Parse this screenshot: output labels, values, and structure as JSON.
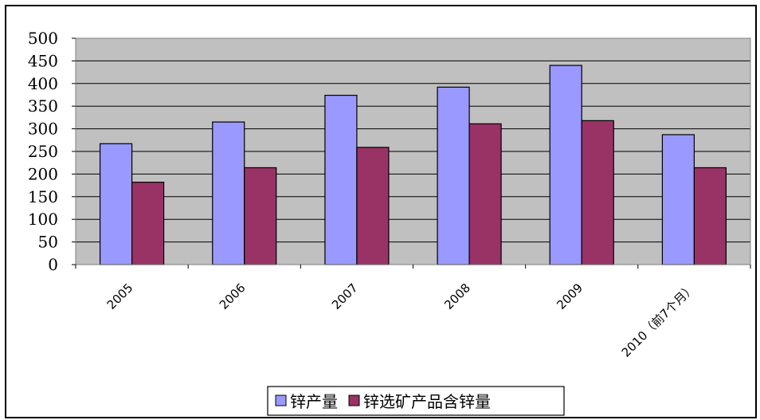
{
  "chart_data": {
    "type": "bar",
    "categories": [
      "2005",
      "2006",
      "2007",
      "2008",
      "2009",
      "2010（前7个月）"
    ],
    "series": [
      {
        "name": "锌产量",
        "values": [
          267,
          315,
          374,
          392,
          440,
          287
        ],
        "color": "#9999ff"
      },
      {
        "name": "锌选矿产品含锌量",
        "values": [
          182,
          214,
          259,
          311,
          318,
          214
        ],
        "color": "#993366"
      }
    ],
    "yticks": [
      0,
      50,
      100,
      150,
      200,
      250,
      300,
      350,
      400,
      450,
      500
    ],
    "ylim": [
      0,
      500
    ],
    "grid": true,
    "plot_background": "#c0c0c0",
    "legend_position": "bottom-center"
  }
}
